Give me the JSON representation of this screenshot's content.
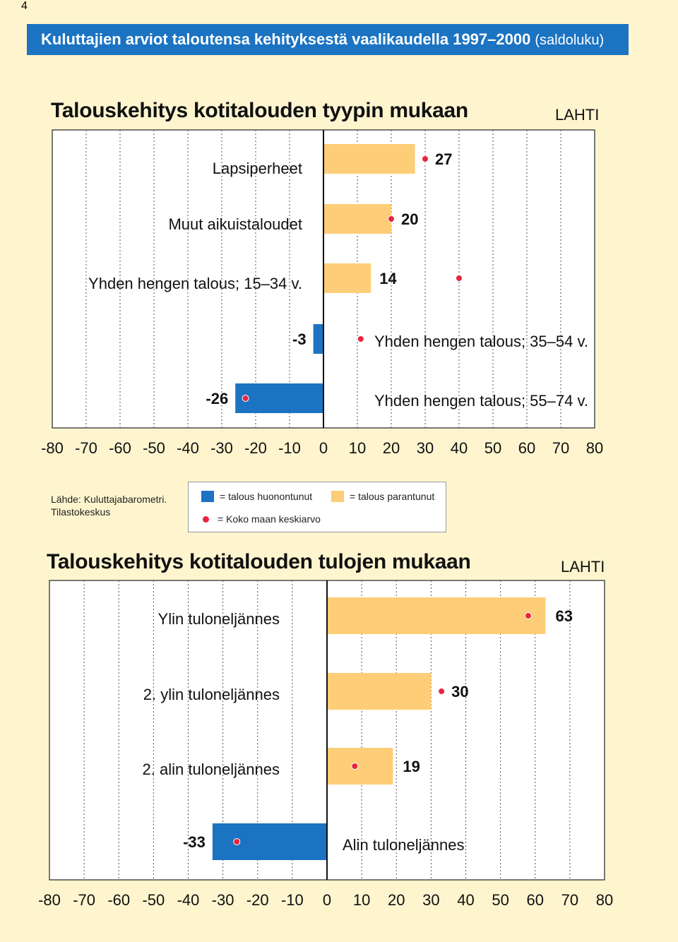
{
  "page_number": "4",
  "header": {
    "title": "Kuluttajien arviot taloutensa kehityksestä vaalikaudella 1997–2000",
    "subtitle": "(saldoluku)"
  },
  "legend": {
    "source_line1": "Lähde: Kuluttajabarometri.",
    "source_line2": "Tilastokeskus",
    "worsened": "= talous huonontunut",
    "improved": "= talous parantunut",
    "national_avg": "= Koko maan keskiarvo"
  },
  "colors": {
    "negative_bar": "#1b73c2",
    "positive_bar": "#fdcd77",
    "average_dot": "#e8253e",
    "background": "#fef5cf"
  },
  "chart_data": [
    {
      "type": "bar",
      "orientation": "horizontal",
      "title": "Talouskehitys kotitalouden tyypin mukaan",
      "region_label": "LAHTI",
      "categories": [
        "Lapsiperheet",
        "Muut aikuistaloudet",
        "Yhden hengen talous; 15–34 v.",
        "Yhden hengen talous; 35–54 v.",
        "Yhden hengen talous; 55–74 v."
      ],
      "values": [
        27,
        20,
        14,
        -3,
        -26
      ],
      "value_labels": [
        "27",
        "20",
        "14",
        "-3",
        "-26"
      ],
      "national_average": [
        30,
        20,
        40,
        11,
        -23
      ],
      "xlim": [
        -80,
        80
      ],
      "xticks": [
        "-80",
        "-70",
        "-60",
        "-50",
        "-40",
        "-30",
        "-20",
        "-10",
        "0",
        "10",
        "20",
        "30",
        "40",
        "50",
        "60",
        "70",
        "80"
      ],
      "grid": true
    },
    {
      "type": "bar",
      "orientation": "horizontal",
      "title": "Talouskehitys kotitalouden tulojen mukaan",
      "region_label": "LAHTI",
      "categories": [
        "Ylin tuloneljännes",
        "2. ylin tuloneljännes",
        "2. alin tuloneljännes",
        "Alin tuloneljännes"
      ],
      "values": [
        63,
        30,
        19,
        -33
      ],
      "value_labels": [
        "63",
        "30",
        "19",
        "-33"
      ],
      "national_average": [
        58,
        33,
        8,
        -26
      ],
      "xlim": [
        -80,
        80
      ],
      "xticks": [
        "-80",
        "-70",
        "-60",
        "-50",
        "-40",
        "-30",
        "-20",
        "-10",
        "0",
        "10",
        "20",
        "30",
        "40",
        "50",
        "60",
        "70",
        "80"
      ],
      "grid": true
    }
  ]
}
